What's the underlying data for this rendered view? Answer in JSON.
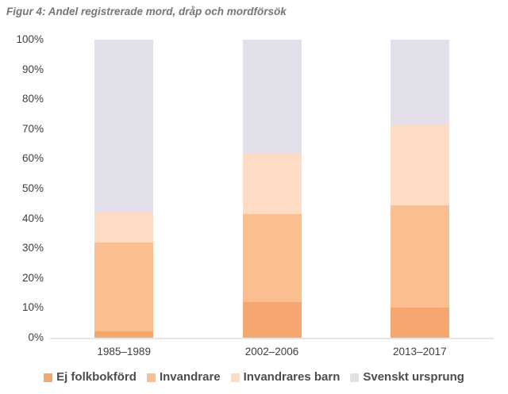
{
  "chart_data": {
    "type": "bar",
    "stacked": true,
    "percent": true,
    "title": "Figur 4: Andel registrerade mord, dråp och mordförsök",
    "categories": [
      "1985–1989",
      "2002–2006",
      "2013–2017"
    ],
    "series": [
      {
        "name": "Ej folkbokförd",
        "color": "#F6A770",
        "values": [
          2,
          12,
          10
        ]
      },
      {
        "name": "Invandrare",
        "color": "#FBBE91",
        "values": [
          30,
          29.5,
          34.5
        ]
      },
      {
        "name": "Invandrares barn",
        "color": "#FDDCC3",
        "values": [
          10,
          20.5,
          27
        ]
      },
      {
        "name": "Svenskt ursprung",
        "color": "#E3E0EB",
        "values": [
          58,
          38,
          28.5
        ]
      }
    ],
    "xlabel": "",
    "ylabel": "",
    "ylim": [
      0,
      100
    ],
    "ytick_step": 10,
    "ytick_suffix": "%",
    "grid": false,
    "legend_position": "bottom"
  },
  "colors": {
    "title_text": "#767676",
    "axis_text": "#3F3F3F",
    "legend_text": "#4D4D4D",
    "axis_line": "#E6E6E6",
    "background": "#FFFFFF"
  }
}
